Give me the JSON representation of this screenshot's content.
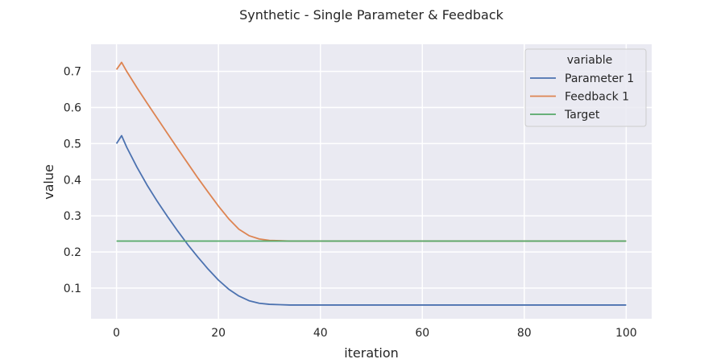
{
  "chart_data": {
    "type": "line",
    "title": "Synthetic - Single Parameter & Feedback",
    "xlabel": "iteration",
    "ylabel": "value",
    "xlim": [
      -5,
      105
    ],
    "ylim": [
      0.015,
      0.775
    ],
    "xticks": [
      0,
      20,
      40,
      60,
      80,
      100
    ],
    "yticks": [
      0.1,
      0.2,
      0.3,
      0.4,
      0.5,
      0.6,
      0.7
    ],
    "grid": true,
    "legend": {
      "title": "variable",
      "position": "top-right"
    },
    "series": [
      {
        "name": "Parameter 1",
        "color": "#4c72b0",
        "x": [
          0,
          1,
          2,
          4,
          6,
          8,
          10,
          12,
          14,
          16,
          18,
          20,
          22,
          24,
          26,
          28,
          30,
          32,
          34,
          36,
          38,
          40,
          50,
          60,
          70,
          80,
          90,
          100
        ],
        "y": [
          0.5,
          0.522,
          0.49,
          0.435,
          0.385,
          0.34,
          0.298,
          0.258,
          0.22,
          0.185,
          0.152,
          0.122,
          0.097,
          0.078,
          0.065,
          0.058,
          0.055,
          0.054,
          0.053,
          0.053,
          0.053,
          0.053,
          0.053,
          0.053,
          0.053,
          0.053,
          0.053,
          0.053
        ]
      },
      {
        "name": "Feedback 1",
        "color": "#dd8452",
        "x": [
          0,
          1,
          2,
          4,
          6,
          8,
          10,
          12,
          14,
          16,
          18,
          20,
          22,
          24,
          26,
          28,
          30,
          32,
          34,
          36,
          38,
          40,
          50,
          60,
          70,
          80,
          90,
          100
        ],
        "y": [
          0.705,
          0.725,
          0.7,
          0.655,
          0.612,
          0.57,
          0.528,
          0.486,
          0.445,
          0.404,
          0.365,
          0.327,
          0.292,
          0.263,
          0.245,
          0.236,
          0.232,
          0.231,
          0.23,
          0.23,
          0.23,
          0.23,
          0.23,
          0.23,
          0.23,
          0.23,
          0.23,
          0.23
        ]
      },
      {
        "name": "Target",
        "color": "#55a868",
        "x": [
          0,
          100
        ],
        "y": [
          0.23,
          0.23
        ]
      }
    ]
  }
}
